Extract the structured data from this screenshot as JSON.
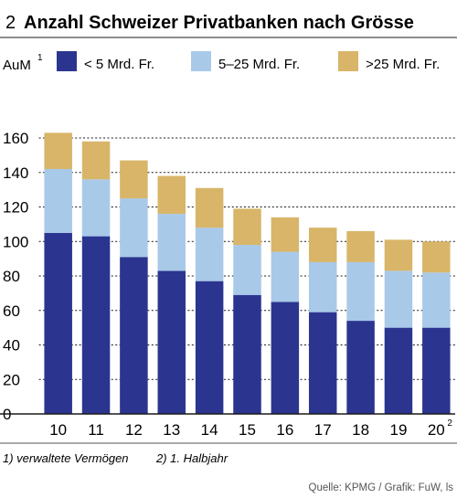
{
  "figure": {
    "number": "2",
    "title": "Anzahl Schweizer Privatbanken nach Grösse",
    "unit_label": "AuM",
    "unit_footnote_mark": "1",
    "last_category_footnote_mark": "2",
    "footnotes": [
      "1) verwaltete Vermögen",
      "2) 1. Halbjahr"
    ],
    "source": "Quelle: KPMG / Grafik: FuW, ls"
  },
  "chart_data": {
    "type": "bar",
    "stacked": true,
    "categories": [
      "10",
      "11",
      "12",
      "13",
      "14",
      "15",
      "16",
      "17",
      "18",
      "19",
      "20"
    ],
    "series": [
      {
        "name": "< 5 Mrd. Fr.",
        "color": "#2b3590",
        "values": [
          105,
          103,
          91,
          83,
          77,
          69,
          65,
          59,
          54,
          50,
          50
        ]
      },
      {
        "name": "5–25 Mrd. Fr.",
        "color": "#a9c9e8",
        "values": [
          37,
          33,
          34,
          33,
          31,
          29,
          29,
          29,
          34,
          33,
          32
        ]
      },
      {
        "name": ">25 Mrd. Fr.",
        "color": "#d8b568",
        "values": [
          21,
          22,
          22,
          22,
          23,
          21,
          20,
          20,
          18,
          18,
          18
        ]
      }
    ],
    "ylim": [
      0,
      160
    ],
    "yticks": [
      0,
      20,
      40,
      60,
      80,
      100,
      120,
      140,
      160
    ],
    "grid": "horizontal-dotted",
    "legend": "top"
  }
}
